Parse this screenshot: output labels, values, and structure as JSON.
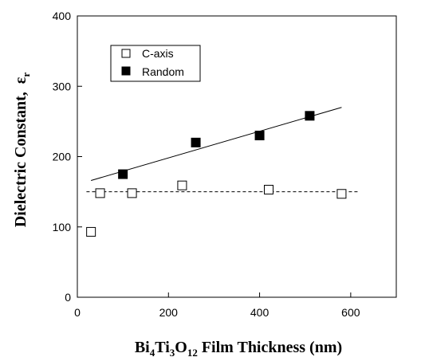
{
  "chart_data": {
    "type": "scatter",
    "title": "",
    "xlabel": {
      "parts": [
        "Bi",
        "4",
        "Ti",
        "3",
        "O",
        "12",
        " Film Thickness (nm)"
      ]
    },
    "ylabel": {
      "main": "Dielectric Constant,  ",
      "symbol": "ε",
      "sub": "r"
    },
    "xlim": [
      0,
      700
    ],
    "ylim": [
      0,
      400
    ],
    "xticks": [
      0,
      200,
      400,
      600
    ],
    "yticks": [
      0,
      100,
      200,
      300,
      400
    ],
    "grid": false,
    "legend_position": "top-left",
    "series": [
      {
        "name": "C-axis",
        "marker": "open-square",
        "x": [
          30,
          50,
          120,
          230,
          420,
          580
        ],
        "y": [
          93,
          148,
          148,
          159,
          153,
          147
        ]
      },
      {
        "name": "Random",
        "marker": "filled-square",
        "x": [
          100,
          260,
          400,
          510
        ],
        "y": [
          175,
          220,
          230,
          258
        ]
      }
    ],
    "trendlines": [
      {
        "series": "Random",
        "style": "solid",
        "x": [
          30,
          580
        ],
        "y": [
          166,
          270
        ]
      },
      {
        "series": "C-axis",
        "style": "dashed",
        "x": [
          20,
          620
        ],
        "y": [
          150,
          150
        ]
      }
    ]
  }
}
